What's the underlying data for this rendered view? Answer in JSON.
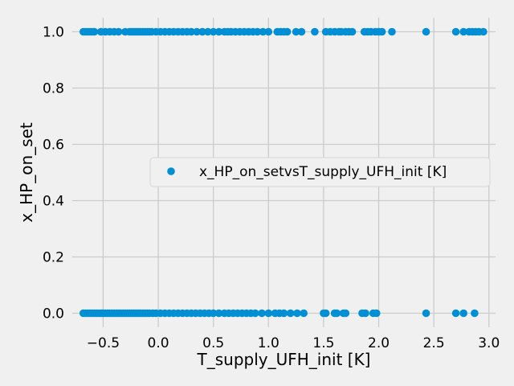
{
  "chart_data": {
    "type": "scatter",
    "title": "",
    "xlabel": "T_supply_UFH_init [K]",
    "ylabel": "x_HP_on_set",
    "xlim": [
      -0.78,
      3.06
    ],
    "ylim": [
      -0.05,
      1.05
    ],
    "x_ticks": [
      -0.5,
      0.0,
      0.5,
      1.0,
      1.5,
      2.0,
      2.5,
      3.0
    ],
    "x_tick_labels": [
      "−0.5",
      "0.0",
      "0.5",
      "1.0",
      "1.5",
      "2.0",
      "2.5",
      "3.0"
    ],
    "y_ticks": [
      0.0,
      0.2,
      0.4,
      0.6,
      0.8,
      1.0
    ],
    "y_tick_labels": [
      "0.0",
      "0.2",
      "0.4",
      "0.6",
      "0.8",
      "1.0"
    ],
    "grid": true,
    "legend_position": "center-right",
    "color": "#008fd5",
    "series": [
      {
        "name": "x_HP_on_setvsT_supply_UFH_init [K]",
        "points": [
          [
            -0.68,
            1.0
          ],
          [
            -0.66,
            1.0
          ],
          [
            -0.64,
            1.0
          ],
          [
            -0.62,
            1.0
          ],
          [
            -0.6,
            1.0
          ],
          [
            -0.58,
            1.0
          ],
          [
            -0.52,
            1.0
          ],
          [
            -0.48,
            1.0
          ],
          [
            -0.44,
            1.0
          ],
          [
            -0.4,
            1.0
          ],
          [
            -0.36,
            1.0
          ],
          [
            -0.3,
            1.0
          ],
          [
            -0.26,
            1.0
          ],
          [
            -0.24,
            1.0
          ],
          [
            -0.22,
            1.0
          ],
          [
            -0.2,
            1.0
          ],
          [
            -0.18,
            1.0
          ],
          [
            -0.16,
            1.0
          ],
          [
            -0.14,
            1.0
          ],
          [
            -0.12,
            1.0
          ],
          [
            -0.1,
            1.0
          ],
          [
            -0.08,
            1.0
          ],
          [
            -0.06,
            1.0
          ],
          [
            -0.02,
            1.0
          ],
          [
            0.02,
            1.0
          ],
          [
            0.06,
            1.0
          ],
          [
            0.1,
            1.0
          ],
          [
            0.14,
            1.0
          ],
          [
            0.18,
            1.0
          ],
          [
            0.22,
            1.0
          ],
          [
            0.26,
            1.0
          ],
          [
            0.3,
            1.0
          ],
          [
            0.35,
            1.0
          ],
          [
            0.4,
            1.0
          ],
          [
            0.45,
            1.0
          ],
          [
            0.5,
            1.0
          ],
          [
            0.55,
            1.0
          ],
          [
            0.6,
            1.0
          ],
          [
            0.63,
            1.0
          ],
          [
            0.66,
            1.0
          ],
          [
            0.7,
            1.0
          ],
          [
            0.74,
            1.0
          ],
          [
            0.78,
            1.0
          ],
          [
            0.82,
            1.0
          ],
          [
            0.86,
            1.0
          ],
          [
            0.9,
            1.0
          ],
          [
            0.95,
            1.0
          ],
          [
            1.0,
            1.0
          ],
          [
            1.08,
            1.0
          ],
          [
            1.11,
            1.0
          ],
          [
            1.14,
            1.0
          ],
          [
            1.17,
            1.0
          ],
          [
            1.25,
            1.0
          ],
          [
            1.3,
            1.0
          ],
          [
            1.42,
            1.0
          ],
          [
            1.52,
            1.0
          ],
          [
            1.56,
            1.0
          ],
          [
            1.6,
            1.0
          ],
          [
            1.64,
            1.0
          ],
          [
            1.66,
            1.0
          ],
          [
            1.7,
            1.0
          ],
          [
            1.73,
            1.0
          ],
          [
            1.76,
            1.0
          ],
          [
            1.87,
            1.0
          ],
          [
            1.9,
            1.0
          ],
          [
            1.93,
            1.0
          ],
          [
            1.97,
            1.0
          ],
          [
            2.0,
            1.0
          ],
          [
            2.03,
            1.0
          ],
          [
            2.12,
            1.0
          ],
          [
            2.43,
            1.0
          ],
          [
            2.7,
            1.0
          ],
          [
            2.77,
            1.0
          ],
          [
            2.82,
            1.0
          ],
          [
            2.85,
            1.0
          ],
          [
            2.88,
            1.0
          ],
          [
            2.91,
            1.0
          ],
          [
            2.95,
            1.0
          ],
          [
            -0.68,
            0.0
          ],
          [
            -0.66,
            0.0
          ],
          [
            -0.64,
            0.0
          ],
          [
            -0.62,
            0.0
          ],
          [
            -0.6,
            0.0
          ],
          [
            -0.58,
            0.0
          ],
          [
            -0.56,
            0.0
          ],
          [
            -0.54,
            0.0
          ],
          [
            -0.52,
            0.0
          ],
          [
            -0.5,
            0.0
          ],
          [
            -0.48,
            0.0
          ],
          [
            -0.46,
            0.0
          ],
          [
            -0.44,
            0.0
          ],
          [
            -0.42,
            0.0
          ],
          [
            -0.4,
            0.0
          ],
          [
            -0.38,
            0.0
          ],
          [
            -0.36,
            0.0
          ],
          [
            -0.34,
            0.0
          ],
          [
            -0.32,
            0.0
          ],
          [
            -0.3,
            0.0
          ],
          [
            -0.28,
            0.0
          ],
          [
            -0.26,
            0.0
          ],
          [
            -0.24,
            0.0
          ],
          [
            -0.22,
            0.0
          ],
          [
            -0.2,
            0.0
          ],
          [
            -0.18,
            0.0
          ],
          [
            -0.16,
            0.0
          ],
          [
            -0.14,
            0.0
          ],
          [
            -0.12,
            0.0
          ],
          [
            -0.1,
            0.0
          ],
          [
            -0.08,
            0.0
          ],
          [
            -0.05,
            0.0
          ],
          [
            -0.02,
            0.0
          ],
          [
            0.02,
            0.0
          ],
          [
            0.06,
            0.0
          ],
          [
            0.1,
            0.0
          ],
          [
            0.14,
            0.0
          ],
          [
            0.18,
            0.0
          ],
          [
            0.22,
            0.0
          ],
          [
            0.26,
            0.0
          ],
          [
            0.3,
            0.0
          ],
          [
            0.34,
            0.0
          ],
          [
            0.38,
            0.0
          ],
          [
            0.42,
            0.0
          ],
          [
            0.46,
            0.0
          ],
          [
            0.5,
            0.0
          ],
          [
            0.55,
            0.0
          ],
          [
            0.6,
            0.0
          ],
          [
            0.64,
            0.0
          ],
          [
            0.68,
            0.0
          ],
          [
            0.72,
            0.0
          ],
          [
            0.76,
            0.0
          ],
          [
            0.8,
            0.0
          ],
          [
            0.84,
            0.0
          ],
          [
            0.88,
            0.0
          ],
          [
            0.94,
            0.0
          ],
          [
            1.0,
            0.0
          ],
          [
            1.06,
            0.0
          ],
          [
            1.1,
            0.0
          ],
          [
            1.14,
            0.0
          ],
          [
            1.2,
            0.0
          ],
          [
            1.26,
            0.0
          ],
          [
            1.32,
            0.0
          ],
          [
            1.5,
            0.0
          ],
          [
            1.52,
            0.0
          ],
          [
            1.6,
            0.0
          ],
          [
            1.62,
            0.0
          ],
          [
            1.68,
            0.0
          ],
          [
            1.7,
            0.0
          ],
          [
            1.85,
            0.0
          ],
          [
            1.88,
            0.0
          ],
          [
            1.95,
            0.0
          ],
          [
            1.98,
            0.0
          ],
          [
            2.43,
            0.0
          ],
          [
            2.7,
            0.0
          ],
          [
            2.77,
            0.0
          ],
          [
            2.87,
            0.0
          ]
        ]
      }
    ]
  }
}
